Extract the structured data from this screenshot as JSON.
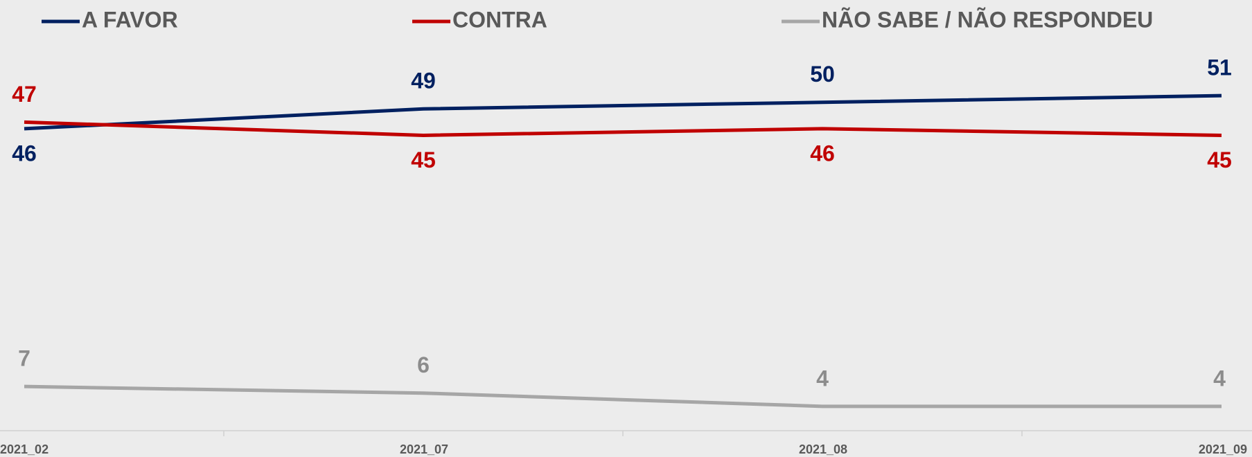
{
  "chart_data": {
    "type": "line",
    "categories": [
      "2021_02",
      "2021_07",
      "2021_08",
      "2021_09"
    ],
    "series": [
      {
        "name": "A FAVOR",
        "color": "#002060",
        "values": [
          46,
          49,
          50,
          51
        ]
      },
      {
        "name": "CONTRA",
        "color": "#c00000",
        "values": [
          47,
          45,
          46,
          45
        ]
      },
      {
        "name": "NÃO SABE / NÃO RESPONDEU",
        "color": "#a6a6a6",
        "values": [
          7,
          6,
          4,
          4
        ]
      }
    ],
    "ylim": [
      0,
      55
    ],
    "legend": "top"
  }
}
